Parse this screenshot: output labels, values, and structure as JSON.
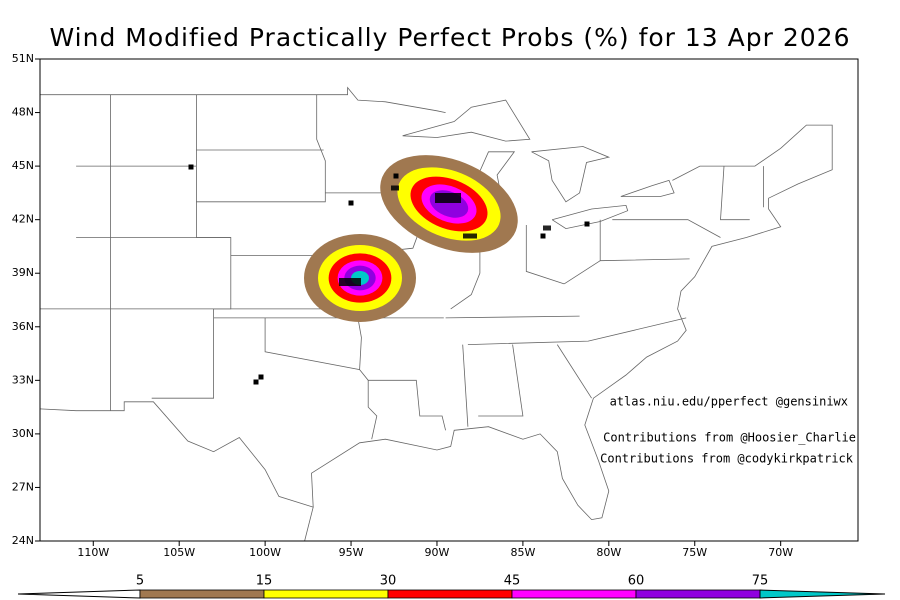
{
  "title": "Wind Modified Practically Perfect Probs (%) for 13 Apr 2026",
  "map": {
    "lonlim": [
      -113.1,
      -65.5
    ],
    "latlim": [
      24,
      51
    ],
    "lat_ticks": [
      {
        "value": 24,
        "label": "24N"
      },
      {
        "value": 27,
        "label": "27N"
      },
      {
        "value": 30,
        "label": "30N"
      },
      {
        "value": 33,
        "label": "33N"
      },
      {
        "value": 36,
        "label": "36N"
      },
      {
        "value": 39,
        "label": "39N"
      },
      {
        "value": 42,
        "label": "42N"
      },
      {
        "value": 45,
        "label": "45N"
      },
      {
        "value": 48,
        "label": "48N"
      },
      {
        "value": 51,
        "label": "51N"
      }
    ],
    "lon_ticks": [
      {
        "value": -110,
        "label": "110W"
      },
      {
        "value": -105,
        "label": "105W"
      },
      {
        "value": -100,
        "label": "100W"
      },
      {
        "value": -95,
        "label": "95W"
      },
      {
        "value": -90,
        "label": "90W"
      },
      {
        "value": -85,
        "label": "85W"
      },
      {
        "value": -80,
        "label": "80W"
      },
      {
        "value": -75,
        "label": "75W"
      },
      {
        "value": -70,
        "label": "70W"
      }
    ]
  },
  "credits": [
    "atlas.niu.edu/pperfect @gensiniwx",
    "Contributions from @Hoosier_Charlie",
    "Contributions from @codykirkpatrick"
  ],
  "colorbar": {
    "levels": [
      5,
      15,
      30,
      45,
      60,
      75
    ],
    "colors": [
      "#ffffff",
      "#a07850",
      "#ffff00",
      "#ff0000",
      "#ff00ff",
      "#9000e0",
      "#00c8c8"
    ]
  }
}
